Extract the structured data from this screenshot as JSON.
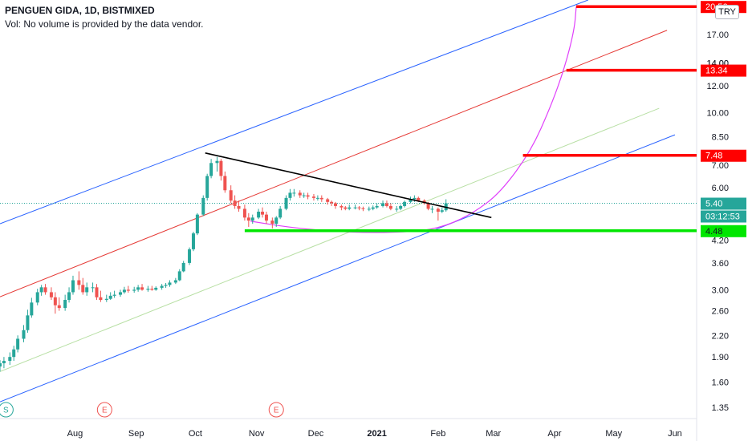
{
  "header": {
    "title": "PENGUEN GIDA, 1D, BISTMIXED",
    "volume_note": "Vol: No volume is provided by the data vendor.",
    "currency": "TRY"
  },
  "colors": {
    "up": "#26a69a",
    "down": "#ef5350",
    "channel": "#2962ff",
    "mid": "#e53935",
    "inner": "#b7dfa3",
    "trend": "#000000",
    "support": "#00e600",
    "arc": "#e040fb",
    "target": "#ff0000"
  },
  "chart_data": {
    "type": "candlestick",
    "y_scale": "log",
    "ylim": [
      1.25,
      21.5
    ],
    "xlim": [
      "2020-06-24",
      "2021-06-12"
    ],
    "y_ticks": [
      1.35,
      1.6,
      1.9,
      2.2,
      2.6,
      3.0,
      3.6,
      4.2,
      5.0,
      6.0,
      7.0,
      8.5,
      10.0,
      12.0,
      14.0,
      17.0,
      20.56
    ],
    "x_ticks": [
      {
        "label": "Aug",
        "date": "2020-08-01"
      },
      {
        "label": "Sep",
        "date": "2020-09-01"
      },
      {
        "label": "Oct",
        "date": "2020-10-01"
      },
      {
        "label": "Nov",
        "date": "2020-11-01"
      },
      {
        "label": "Dec",
        "date": "2020-12-01"
      },
      {
        "label": "2021",
        "date": "2021-01-01",
        "bold": true
      },
      {
        "label": "Feb",
        "date": "2021-02-01"
      },
      {
        "label": "Mar",
        "date": "2021-03-01"
      },
      {
        "label": "Apr",
        "date": "2021-04-01"
      },
      {
        "label": "May",
        "date": "2021-05-01"
      },
      {
        "label": "Jun",
        "date": "2021-06-01"
      }
    ],
    "series": {
      "dates": [
        "2020-06-24",
        "2020-06-26",
        "2020-06-29",
        "2020-07-01",
        "2020-07-03",
        "2020-07-06",
        "2020-07-08",
        "2020-07-10",
        "2020-07-13",
        "2020-07-15",
        "2020-07-17",
        "2020-07-20",
        "2020-07-22",
        "2020-07-24",
        "2020-07-27",
        "2020-07-29",
        "2020-07-31",
        "2020-08-03",
        "2020-08-05",
        "2020-08-07",
        "2020-08-10",
        "2020-08-12",
        "2020-08-14",
        "2020-08-17",
        "2020-08-19",
        "2020-08-21",
        "2020-08-24",
        "2020-08-26",
        "2020-08-28",
        "2020-08-31",
        "2020-09-02",
        "2020-09-04",
        "2020-09-07",
        "2020-09-09",
        "2020-09-11",
        "2020-09-14",
        "2020-09-16",
        "2020-09-18",
        "2020-09-21",
        "2020-09-23",
        "2020-09-25",
        "2020-09-28",
        "2020-09-30",
        "2020-10-02",
        "2020-10-05",
        "2020-10-07",
        "2020-10-09",
        "2020-10-12",
        "2020-10-14",
        "2020-10-16",
        "2020-10-19",
        "2020-10-21",
        "2020-10-23",
        "2020-10-26",
        "2020-10-28",
        "2020-10-30",
        "2020-11-02",
        "2020-11-04",
        "2020-11-06",
        "2020-11-09",
        "2020-11-11",
        "2020-11-13",
        "2020-11-16",
        "2020-11-18",
        "2020-11-20",
        "2020-11-23",
        "2020-11-25",
        "2020-11-27",
        "2020-11-30",
        "2020-12-02",
        "2020-12-04",
        "2020-12-07",
        "2020-12-09",
        "2020-12-11",
        "2020-12-14",
        "2020-12-16",
        "2020-12-18",
        "2020-12-21",
        "2020-12-23",
        "2020-12-25",
        "2020-12-28",
        "2020-12-30",
        "2021-01-01",
        "2021-01-04",
        "2021-01-06",
        "2021-01-08",
        "2021-01-11",
        "2021-01-13",
        "2021-01-15",
        "2021-01-18",
        "2021-01-20",
        "2021-01-22",
        "2021-01-25",
        "2021-01-27",
        "2021-01-29",
        "2021-02-01",
        "2021-02-03",
        "2021-02-05"
      ],
      "open": [
        1.78,
        1.82,
        1.85,
        1.9,
        2.0,
        2.15,
        2.28,
        2.52,
        2.75,
        2.95,
        3.05,
        2.95,
        2.85,
        2.7,
        2.65,
        2.8,
        2.95,
        3.2,
        3.1,
        2.95,
        3.05,
        3.05,
        2.85,
        2.8,
        2.82,
        2.88,
        2.9,
        2.95,
        3.0,
        2.98,
        3.0,
        3.05,
        3.0,
        3.02,
        3.0,
        3.04,
        3.08,
        3.1,
        3.15,
        3.2,
        3.4,
        3.6,
        3.95,
        4.4,
        5.0,
        5.6,
        6.5,
        7.1,
        7.2,
        6.5,
        5.9,
        5.5,
        5.3,
        5.2,
        4.9,
        4.8,
        4.9,
        5.1,
        5.0,
        4.8,
        4.7,
        4.9,
        5.2,
        5.6,
        5.8,
        5.8,
        5.7,
        5.7,
        5.65,
        5.6,
        5.6,
        5.55,
        5.45,
        5.4,
        5.3,
        5.25,
        5.2,
        5.25,
        5.25,
        5.22,
        5.2,
        5.2,
        5.25,
        5.3,
        5.4,
        5.3,
        5.2,
        5.2,
        5.3,
        5.45,
        5.55,
        5.6,
        5.5,
        5.4,
        5.2,
        5.2,
        5.1,
        5.15
      ],
      "high": [
        1.86,
        1.9,
        1.96,
        2.05,
        2.2,
        2.36,
        2.62,
        2.84,
        3.02,
        3.1,
        3.12,
        3.05,
        2.95,
        2.85,
        2.9,
        3.05,
        3.3,
        3.4,
        3.25,
        3.15,
        3.15,
        3.12,
        2.98,
        2.9,
        2.95,
        2.98,
        3.0,
        3.06,
        3.08,
        3.06,
        3.1,
        3.12,
        3.08,
        3.08,
        3.07,
        3.12,
        3.14,
        3.2,
        3.25,
        3.45,
        3.65,
        4.0,
        4.45,
        5.05,
        5.7,
        6.6,
        7.3,
        7.4,
        7.3,
        6.7,
        6.1,
        5.7,
        5.5,
        5.35,
        5.05,
        5.0,
        5.2,
        5.25,
        5.1,
        4.9,
        4.95,
        5.3,
        5.7,
        5.95,
        5.95,
        5.9,
        5.8,
        5.8,
        5.75,
        5.7,
        5.7,
        5.6,
        5.5,
        5.45,
        5.35,
        5.3,
        5.35,
        5.35,
        5.3,
        5.28,
        5.28,
        5.32,
        5.4,
        5.5,
        5.5,
        5.4,
        5.3,
        5.35,
        5.5,
        5.65,
        5.7,
        5.65,
        5.55,
        5.45,
        5.3,
        5.25,
        5.25,
        5.55
      ],
      "low": [
        1.72,
        1.76,
        1.8,
        1.85,
        1.96,
        2.1,
        2.24,
        2.48,
        2.7,
        2.88,
        2.9,
        2.8,
        2.55,
        2.6,
        2.6,
        2.75,
        2.9,
        3.0,
        2.9,
        2.88,
        2.95,
        2.8,
        2.76,
        2.76,
        2.8,
        2.84,
        2.86,
        2.92,
        2.94,
        2.94,
        2.96,
        2.98,
        2.96,
        2.98,
        2.98,
        3.0,
        3.04,
        3.06,
        3.12,
        3.18,
        3.38,
        3.55,
        3.9,
        4.35,
        4.95,
        5.5,
        6.4,
        6.7,
        6.3,
        5.8,
        5.4,
        5.2,
        5.1,
        4.8,
        4.6,
        4.7,
        4.85,
        4.9,
        4.7,
        4.55,
        4.6,
        4.85,
        5.15,
        5.5,
        5.65,
        5.6,
        5.6,
        5.55,
        5.5,
        5.5,
        5.45,
        5.35,
        5.3,
        5.2,
        5.15,
        5.15,
        5.15,
        5.18,
        5.15,
        5.12,
        5.12,
        5.15,
        5.2,
        5.25,
        5.25,
        5.15,
        5.1,
        5.15,
        5.25,
        5.4,
        5.45,
        5.45,
        5.35,
        5.15,
        5.05,
        4.8,
        5.05,
        5.1
      ],
      "close": [
        1.82,
        1.85,
        1.9,
        2.0,
        2.15,
        2.28,
        2.52,
        2.75,
        2.95,
        3.05,
        2.95,
        2.85,
        2.7,
        2.65,
        2.8,
        2.95,
        3.2,
        3.1,
        2.95,
        3.05,
        3.05,
        2.85,
        2.8,
        2.82,
        2.88,
        2.9,
        2.95,
        3.0,
        2.98,
        3.0,
        3.05,
        3.0,
        3.02,
        3.0,
        3.04,
        3.08,
        3.1,
        3.15,
        3.2,
        3.4,
        3.6,
        3.95,
        4.4,
        5.0,
        5.6,
        6.5,
        7.1,
        7.2,
        6.5,
        5.9,
        5.5,
        5.3,
        5.2,
        4.9,
        4.8,
        4.9,
        5.1,
        5.0,
        4.8,
        4.7,
        4.9,
        5.2,
        5.6,
        5.8,
        5.8,
        5.7,
        5.7,
        5.65,
        5.6,
        5.6,
        5.55,
        5.45,
        5.4,
        5.3,
        5.25,
        5.2,
        5.25,
        5.25,
        5.22,
        5.2,
        5.2,
        5.25,
        5.3,
        5.4,
        5.3,
        5.2,
        5.2,
        5.3,
        5.45,
        5.55,
        5.6,
        5.5,
        5.4,
        5.2,
        5.2,
        5.1,
        5.15,
        5.4
      ]
    },
    "price_labels": {
      "top": "20.56",
      "t1": "13.34",
      "t1_under": "14.00",
      "t2": "7.48",
      "last": "5.40",
      "countdown": "03:12:53",
      "support": "4.48"
    },
    "drawings": {
      "channel_upper": [
        [
          "2020-06-24",
          4.7
        ],
        [
          "2021-04-18",
          21.5
        ]
      ],
      "channel_lower": [
        [
          "2020-06-24",
          1.4
        ],
        [
          "2021-06-01",
          8.6
        ]
      ],
      "mid_line": [
        [
          "2020-06-24",
          2.86
        ],
        [
          "2021-05-28",
          17.5
        ]
      ],
      "inner_line": [
        [
          "2020-06-24",
          1.72
        ],
        [
          "2021-05-24",
          10.3
        ]
      ],
      "trend_line": [
        [
          "2020-10-06",
          7.6
        ],
        [
          "2021-02-28",
          4.9
        ]
      ],
      "support_line": {
        "from": "2020-10-26",
        "to": "2021-06-12",
        "value": 4.48
      },
      "targets": [
        {
          "value": 20.56,
          "from": "2021-04-12",
          "to": "2021-06-12"
        },
        {
          "value": 13.34,
          "from": "2021-04-07",
          "to": "2021-06-12"
        },
        {
          "value": 7.48,
          "from": "2021-03-16",
          "to": "2021-06-12"
        }
      ],
      "arc": [
        [
          "2020-10-29",
          4.78
        ],
        [
          "2020-11-20",
          4.56
        ],
        [
          "2020-12-20",
          4.42
        ],
        [
          "2021-01-20",
          4.44
        ],
        [
          "2021-02-05",
          4.62
        ],
        [
          "2021-02-20",
          5.1
        ],
        [
          "2021-03-05",
          5.85
        ],
        [
          "2021-03-20",
          7.7
        ],
        [
          "2021-03-30",
          10.4
        ],
        [
          "2021-04-06",
          13.5
        ],
        [
          "2021-04-11",
          17.5
        ],
        [
          "2021-04-12",
          20.56
        ]
      ]
    },
    "events": [
      {
        "label": "S",
        "date": "2020-06-27",
        "kind": "split"
      },
      {
        "label": "E",
        "date": "2020-08-16",
        "kind": "earnings"
      },
      {
        "label": "E",
        "date": "2020-11-11",
        "kind": "earnings"
      }
    ]
  }
}
